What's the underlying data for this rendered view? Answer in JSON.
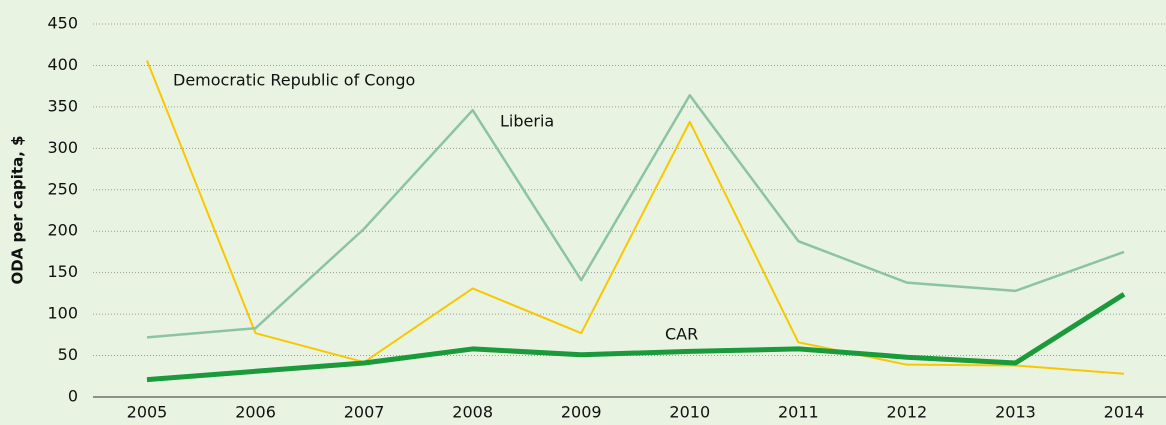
{
  "chart_data": {
    "type": "line",
    "y_label": "ODA per capita, $",
    "categories": [
      "2005",
      "2006",
      "2007",
      "2008",
      "2009",
      "2010",
      "2011",
      "2012",
      "2013",
      "2014"
    ],
    "series": [
      {
        "name": "Democratic Republic of Congo",
        "color": "#f7c800",
        "values": [
          406,
          77,
          42,
          131,
          77,
          332,
          66,
          39,
          38,
          28
        ]
      },
      {
        "name": "Liberia",
        "color": "#8cc3a2",
        "values": [
          72,
          83,
          203,
          346,
          141,
          364,
          188,
          138,
          128,
          175
        ]
      },
      {
        "name": "CAR",
        "color": "#1a9a3a",
        "values": [
          21,
          31,
          41,
          58,
          51,
          55,
          58,
          48,
          41,
          124
        ]
      }
    ],
    "ylim": [
      0,
      450
    ],
    "yticks": [
      0,
      50,
      100,
      150,
      200,
      250,
      300,
      350,
      400,
      450
    ],
    "grid": true
  }
}
